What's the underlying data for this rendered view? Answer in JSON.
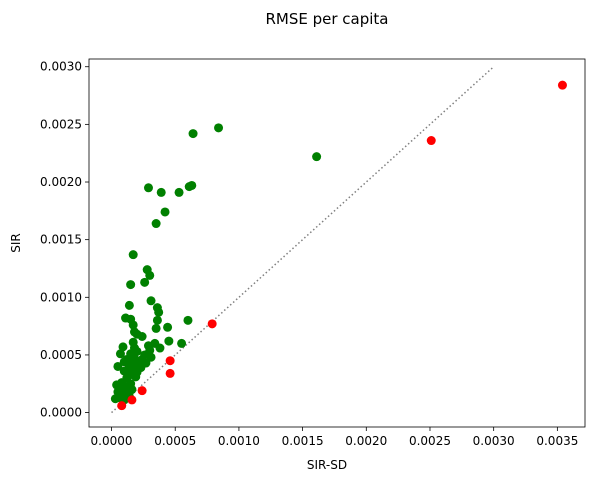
{
  "chart_data": {
    "type": "scatter",
    "title": "RMSE per capita",
    "xlabel": "SIR-SD",
    "ylabel": "SIR",
    "xlim": [
      -0.000177,
      0.003717
    ],
    "ylim": [
      -0.000125,
      0.003067
    ],
    "xticks": [
      0.0,
      0.0005,
      0.001,
      0.0015,
      0.002,
      0.0025,
      0.003,
      0.0035
    ],
    "xtick_labels": [
      "0.0000",
      "0.0005",
      "0.0010",
      "0.0015",
      "0.0020",
      "0.0025",
      "0.0030",
      "0.0035"
    ],
    "yticks": [
      0.0,
      0.0005,
      0.001,
      0.0015,
      0.002,
      0.0025,
      0.003
    ],
    "ytick_labels": [
      "0.0000",
      "0.0005",
      "0.0010",
      "0.0015",
      "0.0020",
      "0.0025",
      "0.0030"
    ],
    "grid": false,
    "reference_line": {
      "x": [
        0,
        0.003
      ],
      "y": [
        0,
        0.003
      ],
      "style": "dotted",
      "color": "#808080"
    },
    "series": [
      {
        "color": "#008000",
        "points": [
          [
            0.00084,
            0.00247
          ],
          [
            0.00064,
            0.00242
          ],
          [
            0.00161,
            0.00222
          ],
          [
            0.00063,
            0.00197
          ],
          [
            0.00061,
            0.00196
          ],
          [
            0.00029,
            0.00195
          ],
          [
            0.00053,
            0.00191
          ],
          [
            0.00039,
            0.00191
          ],
          [
            0.00042,
            0.00174
          ],
          [
            0.00035,
            0.00164
          ],
          [
            0.00017,
            0.00137
          ],
          [
            0.00028,
            0.00124
          ],
          [
            0.0003,
            0.00119
          ],
          [
            0.00015,
            0.00111
          ],
          [
            0.00026,
            0.00113
          ],
          [
            0.00031,
            0.00097
          ],
          [
            0.00014,
            0.00093
          ],
          [
            0.00036,
            0.00091
          ],
          [
            0.00037,
            0.00087
          ],
          [
            0.00011,
            0.00082
          ],
          [
            0.00015,
            0.00081
          ],
          [
            0.0006,
            0.0008
          ],
          [
            0.00036,
            0.0008
          ],
          [
            0.00017,
            0.00076
          ],
          [
            0.00035,
            0.00073
          ],
          [
            0.00044,
            0.00074
          ],
          [
            0.00018,
            0.0007
          ],
          [
            0.0002,
            0.00068
          ],
          [
            0.00024,
            0.00066
          ],
          [
            0.00045,
            0.00062
          ],
          [
            0.00055,
            0.0006
          ],
          [
            0.00034,
            0.0006
          ],
          [
            0.00017,
            0.00061
          ],
          [
            0.00029,
            0.00058
          ],
          [
            9e-05,
            0.00057
          ],
          [
            0.00038,
            0.00056
          ],
          [
            0.00018,
            0.00056
          ],
          [
            0.0003,
            0.00054
          ],
          [
            0.0002,
            0.00053
          ],
          [
            7e-05,
            0.00051
          ],
          [
            0.00015,
            0.00051
          ],
          [
            0.00026,
            0.0005
          ],
          [
            0.00031,
            0.00048
          ],
          [
            0.00018,
            0.00047
          ],
          [
            0.00012,
            0.00046
          ],
          [
            0.00024,
            0.00046
          ],
          [
            0.0001,
            0.00044
          ],
          [
            0.00017,
            0.00043
          ],
          [
            0.00027,
            0.00043
          ],
          [
            0.00021,
            0.00041
          ],
          [
            5e-05,
            0.0004
          ],
          [
            0.00014,
            0.0004
          ],
          [
            0.00023,
            0.00039
          ],
          [
            0.00018,
            0.00037
          ],
          [
            0.0001,
            0.00036
          ],
          [
            0.0002,
            0.00035
          ],
          [
            0.00013,
            0.00034
          ],
          [
            0.00016,
            0.00033
          ],
          [
            0.00019,
            0.00031
          ],
          [
            0.00012,
            0.0003
          ],
          [
            8e-05,
            0.00026
          ],
          [
            0.00015,
            0.00025
          ],
          [
            4e-05,
            0.00024
          ],
          [
            0.0001,
            0.00023
          ],
          [
            0.00013,
            0.00022
          ],
          [
            7e-05,
            0.0002
          ],
          [
            0.00016,
            0.0002
          ],
          [
            5e-05,
            0.00018
          ],
          [
            0.00011,
            0.00017
          ],
          [
            9e-05,
            0.00015
          ],
          [
            0.00014,
            0.00014
          ],
          [
            6e-05,
            0.00013
          ],
          [
            3e-05,
            0.00012
          ],
          [
            0.0001,
            0.00011
          ]
        ]
      },
      {
        "color": "#ff0000",
        "points": [
          [
            0.00354,
            0.00284
          ],
          [
            0.00251,
            0.00236
          ],
          [
            0.00079,
            0.00077
          ],
          [
            0.00046,
            0.00045
          ],
          [
            0.00046,
            0.00034
          ],
          [
            0.00024,
            0.00019
          ],
          [
            0.00016,
            0.00011
          ],
          [
            8e-05,
            6e-05
          ]
        ]
      }
    ]
  }
}
